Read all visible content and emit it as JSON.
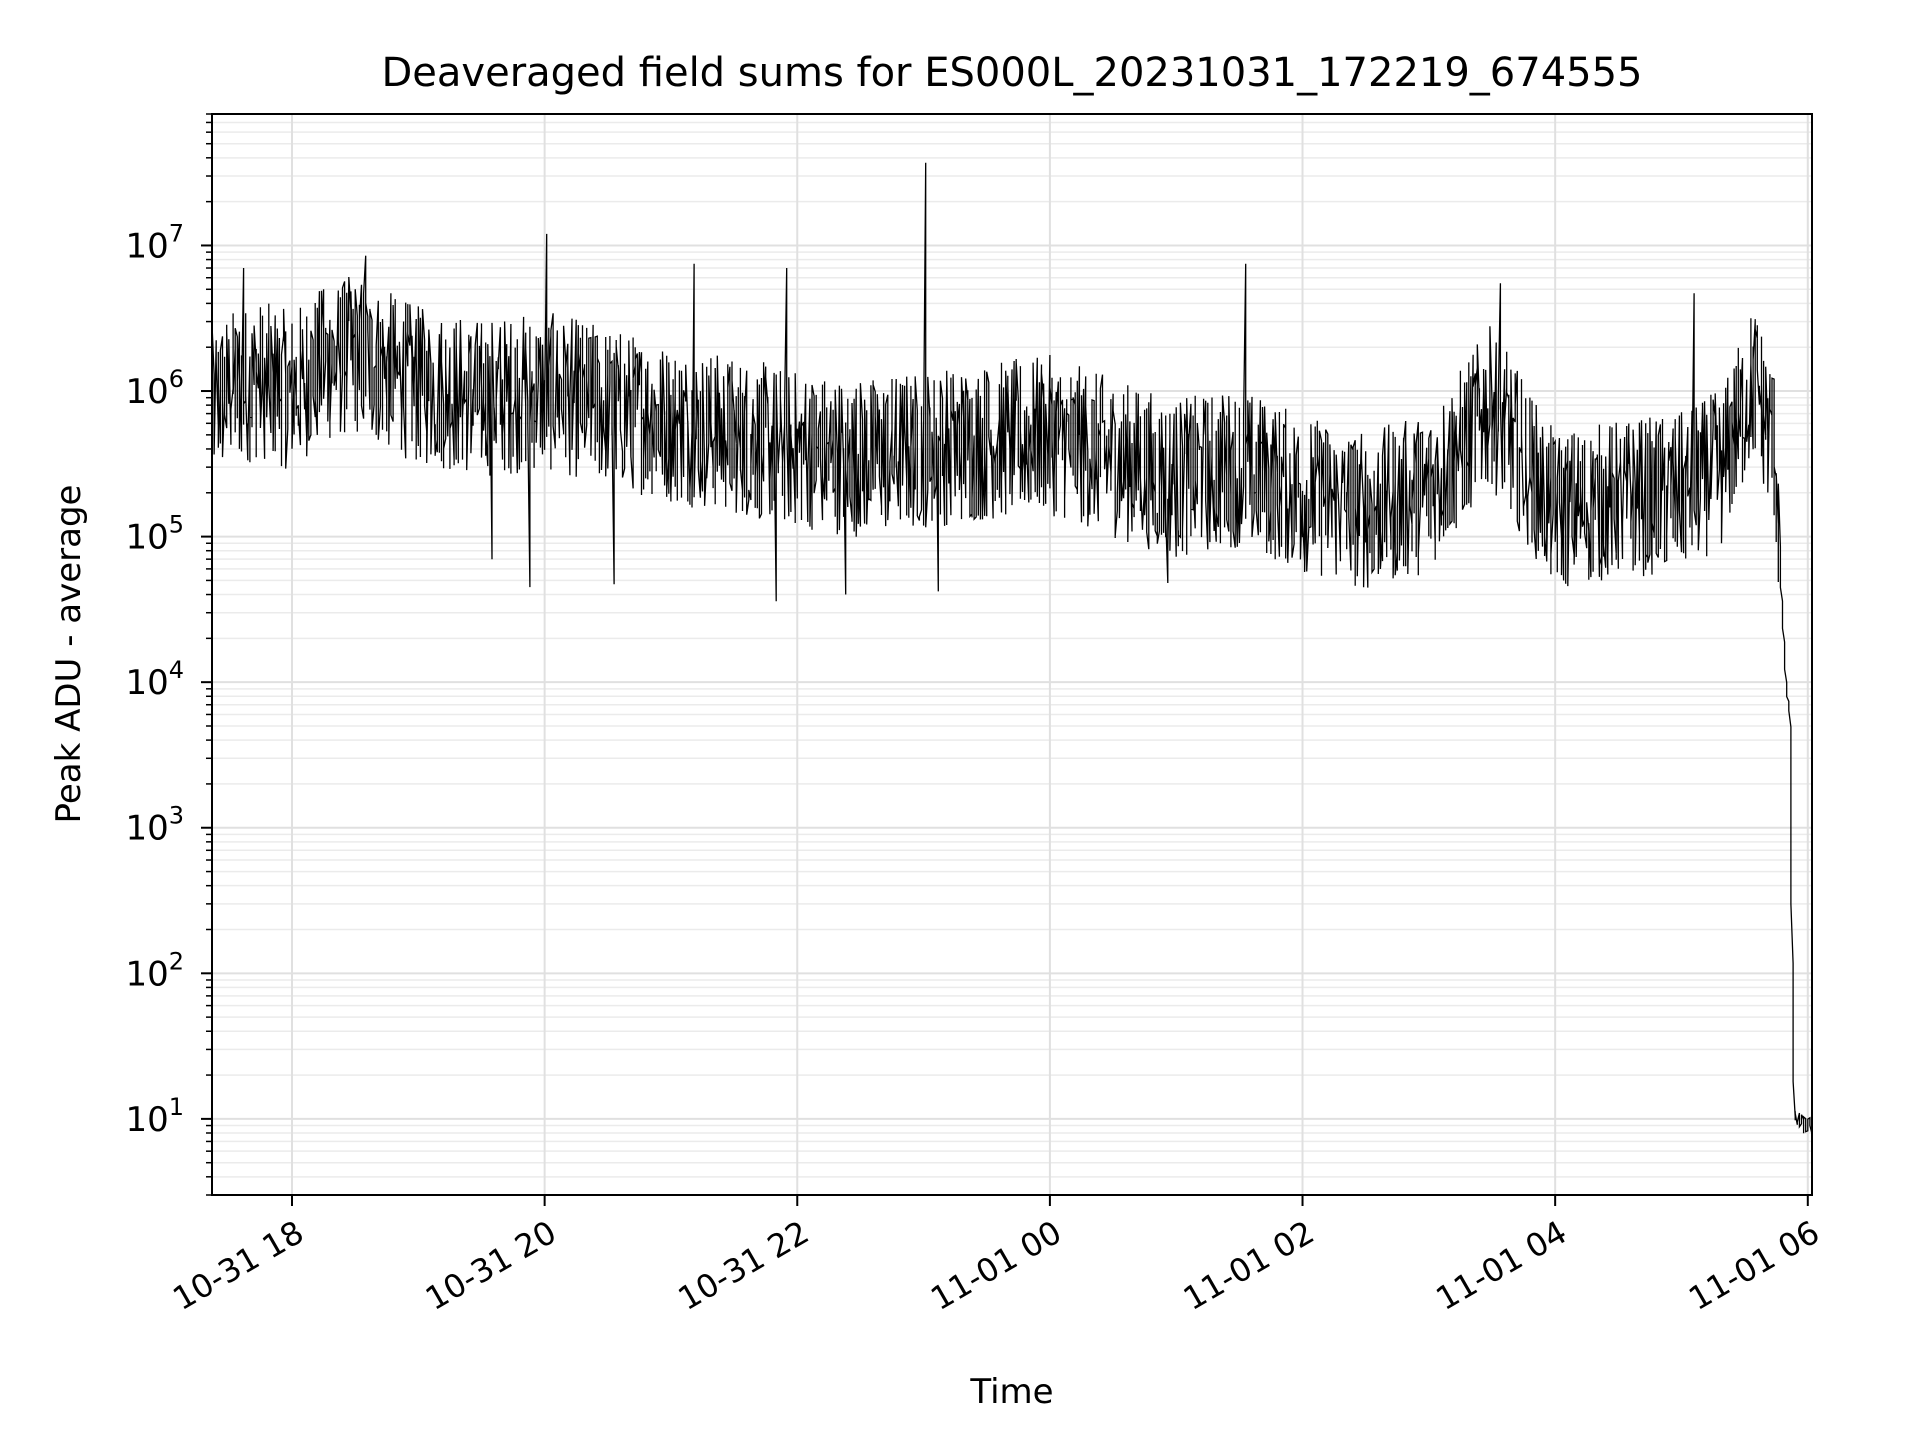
{
  "chart_data": {
    "type": "line",
    "title": "Deaveraged field sums for ES000L_20231031_172219_674555",
    "xlabel": "Time",
    "ylabel": "Peak ADU - average",
    "yscale": "log",
    "ylim": [
      3,
      80000000
    ],
    "xlim": [
      "2023-10-31 17:22",
      "2023-11-01 06:02"
    ],
    "grid": true,
    "x_ticks": [
      {
        "value": "2023-10-31 18:00",
        "label": "10-31 18"
      },
      {
        "value": "2023-10-31 20:00",
        "label": "10-31 20"
      },
      {
        "value": "2023-10-31 22:00",
        "label": "10-31 22"
      },
      {
        "value": "2023-11-01 00:00",
        "label": "11-01 00"
      },
      {
        "value": "2023-11-01 02:00",
        "label": "11-01 02"
      },
      {
        "value": "2023-11-01 04:00",
        "label": "11-01 04"
      },
      {
        "value": "2023-11-01 06:00",
        "label": "11-01 06"
      }
    ],
    "y_ticks": [
      {
        "value": 10,
        "base": "10",
        "exp": "1"
      },
      {
        "value": 100,
        "base": "10",
        "exp": "2"
      },
      {
        "value": 1000,
        "base": "10",
        "exp": "3"
      },
      {
        "value": 10000,
        "base": "10",
        "exp": "4"
      },
      {
        "value": 100000,
        "base": "10",
        "exp": "5"
      },
      {
        "value": 1000000,
        "base": "10",
        "exp": "6"
      },
      {
        "value": 10000000,
        "base": "10",
        "exp": "7"
      }
    ],
    "series": [
      {
        "color": "#000000",
        "points": [
          [
            "2023-10-31 17:22",
            800000
          ],
          [
            "2023-10-31 17:30",
            1000000
          ],
          [
            "2023-10-31 17:45",
            1200000
          ],
          [
            "2023-10-31 18:00",
            1000000
          ],
          [
            "2023-10-31 18:15",
            1500000
          ],
          [
            "2023-10-31 18:30",
            1800000
          ],
          [
            "2023-10-31 18:45",
            1400000
          ],
          [
            "2023-10-31 19:00",
            1100000
          ],
          [
            "2023-10-31 19:30",
            900000
          ],
          [
            "2023-10-31 20:00",
            1000000
          ],
          [
            "2023-10-31 20:30",
            800000
          ],
          [
            "2023-10-31 21:00",
            600000
          ],
          [
            "2023-10-31 21:30",
            500000
          ],
          [
            "2023-10-31 22:00",
            400000
          ],
          [
            "2023-10-31 22:30",
            350000
          ],
          [
            "2023-10-31 23:00",
            400000
          ],
          [
            "2023-10-31 23:30",
            450000
          ],
          [
            "2023-11-01 00:00",
            500000
          ],
          [
            "2023-11-01 00:30",
            350000
          ],
          [
            "2023-11-01 01:00",
            250000
          ],
          [
            "2023-11-01 01:30",
            300000
          ],
          [
            "2023-11-01 02:00",
            200000
          ],
          [
            "2023-11-01 02:30",
            150000
          ],
          [
            "2023-11-01 03:00",
            200000
          ],
          [
            "2023-11-01 03:30",
            800000
          ],
          [
            "2023-11-01 04:00",
            150000
          ],
          [
            "2023-11-01 04:30",
            180000
          ],
          [
            "2023-11-01 05:00",
            200000
          ],
          [
            "2023-11-01 05:20",
            300000
          ],
          [
            "2023-11-01 05:35",
            1200000
          ],
          [
            "2023-11-01 05:45",
            400000
          ],
          [
            "2023-11-01 05:50",
            10000
          ],
          [
            "2023-11-01 05:52",
            6000
          ],
          [
            "2023-11-01 05:54",
            10
          ],
          [
            "2023-11-01 06:00",
            9
          ]
        ]
      }
    ],
    "peaks": [
      [
        "2023-10-31 17:37",
        7000000
      ],
      [
        "2023-10-31 18:15",
        5000000
      ],
      [
        "2023-10-31 18:35",
        8500000
      ],
      [
        "2023-10-31 20:01",
        12000000
      ],
      [
        "2023-10-31 21:11",
        7500000
      ],
      [
        "2023-10-31 21:55",
        7000000
      ],
      [
        "2023-10-31 23:01",
        37000000
      ],
      [
        "2023-11-01 01:33",
        7500000
      ],
      [
        "2023-11-01 03:34",
        5500000
      ],
      [
        "2023-11-01 05:06",
        4700000
      ]
    ],
    "troughs": [
      [
        "2023-10-31 19:35",
        70000
      ],
      [
        "2023-10-31 19:53",
        45000
      ],
      [
        "2023-10-31 20:33",
        47000
      ],
      [
        "2023-10-31 21:50",
        36000
      ],
      [
        "2023-10-31 22:23",
        40000
      ],
      [
        "2023-10-31 23:07",
        42000
      ],
      [
        "2023-11-01 00:56",
        48000
      ]
    ]
  }
}
